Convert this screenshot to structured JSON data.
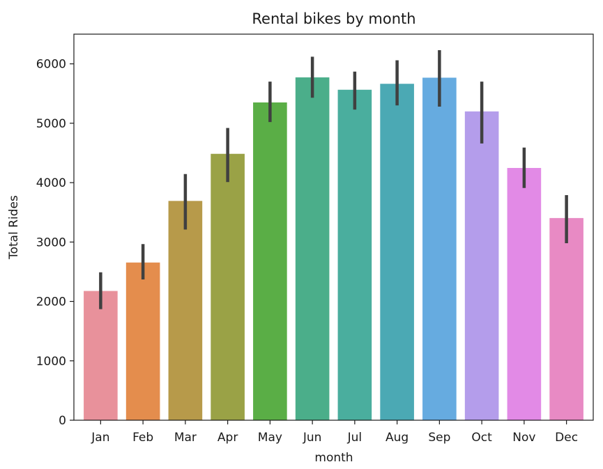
{
  "chart_data": {
    "type": "bar",
    "title": "Rental bikes by month",
    "xlabel": "month",
    "ylabel": "Total Rides",
    "categories": [
      "Jan",
      "Feb",
      "Mar",
      "Apr",
      "May",
      "Jun",
      "Jul",
      "Aug",
      "Sep",
      "Oct",
      "Nov",
      "Dec"
    ],
    "values": [
      2176,
      2655,
      3692,
      4485,
      5350,
      5772,
      5564,
      5664,
      5767,
      5199,
      4247,
      3404
    ],
    "error_bars": [
      [
        1870,
        2490
      ],
      [
        2370,
        2965
      ],
      [
        3210,
        4145
      ],
      [
        4010,
        4920
      ],
      [
        5020,
        5700
      ],
      [
        5430,
        6120
      ],
      [
        5230,
        5870
      ],
      [
        5300,
        6060
      ],
      [
        5280,
        6230
      ],
      [
        4660,
        5700
      ],
      [
        3910,
        4590
      ],
      [
        2980,
        3790
      ]
    ],
    "bar_colors": [
      "#e8919b",
      "#e48d4d",
      "#b79a4a",
      "#9aa246",
      "#5aae46",
      "#4bae8a",
      "#4aae9e",
      "#4ba9b4",
      "#66abe0",
      "#b49deb",
      "#e28ae6",
      "#e88ac4"
    ],
    "error_color": "#404040",
    "ylim": [
      0,
      6500
    ],
    "yticks": [
      0,
      1000,
      2000,
      3000,
      4000,
      5000,
      6000
    ],
    "grid": false,
    "legend": "none"
  }
}
